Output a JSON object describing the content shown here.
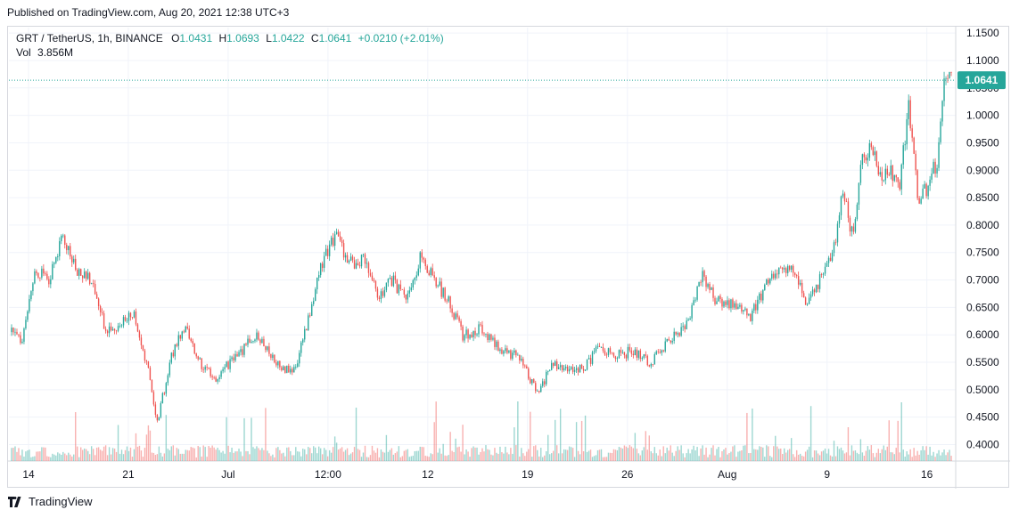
{
  "header": {
    "published": "Published on TradingView.com, Aug 20, 2021 12:38 UTC+3"
  },
  "legend": {
    "symbol": "GRT / TetherUS, 1h, BINANCE",
    "o_label": "O",
    "o": "1.0431",
    "h_label": "H",
    "h": "1.0693",
    "l_label": "L",
    "l": "1.0422",
    "c_label": "C",
    "c": "1.0641",
    "change": "+0.0210 (+2.01%)",
    "vol_label": "Vol",
    "vol": "3.856M"
  },
  "footer": {
    "brand": "TradingView"
  },
  "colors": {
    "up": "#26a69a",
    "down": "#ef5350",
    "grid": "#f0f3fa",
    "axis": "#131722",
    "last_price_bg": "#26a69a"
  },
  "chart_data": {
    "type": "candlestick",
    "symbol": "GRT / TetherUS",
    "interval": "1h",
    "exchange": "BINANCE",
    "y_ticks": [
      "1.1500",
      "1.1000",
      "1.0500",
      "1.0000",
      "0.9500",
      "0.9000",
      "0.8500",
      "0.8000",
      "0.7500",
      "0.7000",
      "0.6500",
      "0.6000",
      "0.5500",
      "0.5000",
      "0.4500",
      "0.4000"
    ],
    "ylim": [
      0.37,
      1.16
    ],
    "last_price": "1.0641",
    "x_ticks": [
      "14",
      "21",
      "Jul",
      "12:00",
      "12",
      "19",
      "26",
      "Aug",
      "9",
      "16"
    ],
    "grid": true,
    "price_path": [
      {
        "x": 0.0,
        "y": 0.605
      },
      {
        "x": 0.012,
        "y": 0.59
      },
      {
        "x": 0.025,
        "y": 0.72
      },
      {
        "x": 0.04,
        "y": 0.7
      },
      {
        "x": 0.055,
        "y": 0.78
      },
      {
        "x": 0.07,
        "y": 0.71
      },
      {
        "x": 0.085,
        "y": 0.7
      },
      {
        "x": 0.1,
        "y": 0.61
      },
      {
        "x": 0.115,
        "y": 0.62
      },
      {
        "x": 0.13,
        "y": 0.64
      },
      {
        "x": 0.145,
        "y": 0.54
      },
      {
        "x": 0.155,
        "y": 0.44
      },
      {
        "x": 0.17,
        "y": 0.56
      },
      {
        "x": 0.185,
        "y": 0.62
      },
      {
        "x": 0.2,
        "y": 0.55
      },
      {
        "x": 0.215,
        "y": 0.52
      },
      {
        "x": 0.24,
        "y": 0.56
      },
      {
        "x": 0.26,
        "y": 0.6
      },
      {
        "x": 0.28,
        "y": 0.55
      },
      {
        "x": 0.3,
        "y": 0.53
      },
      {
        "x": 0.315,
        "y": 0.62
      },
      {
        "x": 0.33,
        "y": 0.73
      },
      {
        "x": 0.345,
        "y": 0.78
      },
      {
        "x": 0.36,
        "y": 0.73
      },
      {
        "x": 0.375,
        "y": 0.74
      },
      {
        "x": 0.39,
        "y": 0.67
      },
      {
        "x": 0.405,
        "y": 0.7
      },
      {
        "x": 0.42,
        "y": 0.66
      },
      {
        "x": 0.435,
        "y": 0.74
      },
      {
        "x": 0.45,
        "y": 0.7
      },
      {
        "x": 0.465,
        "y": 0.66
      },
      {
        "x": 0.48,
        "y": 0.6
      },
      {
        "x": 0.5,
        "y": 0.61
      },
      {
        "x": 0.52,
        "y": 0.57
      },
      {
        "x": 0.54,
        "y": 0.56
      },
      {
        "x": 0.56,
        "y": 0.49
      },
      {
        "x": 0.575,
        "y": 0.55
      },
      {
        "x": 0.59,
        "y": 0.54
      },
      {
        "x": 0.61,
        "y": 0.54
      },
      {
        "x": 0.625,
        "y": 0.58
      },
      {
        "x": 0.64,
        "y": 0.56
      },
      {
        "x": 0.66,
        "y": 0.57
      },
      {
        "x": 0.68,
        "y": 0.55
      },
      {
        "x": 0.7,
        "y": 0.59
      },
      {
        "x": 0.72,
        "y": 0.62
      },
      {
        "x": 0.735,
        "y": 0.71
      },
      {
        "x": 0.75,
        "y": 0.66
      },
      {
        "x": 0.77,
        "y": 0.66
      },
      {
        "x": 0.785,
        "y": 0.63
      },
      {
        "x": 0.8,
        "y": 0.68
      },
      {
        "x": 0.815,
        "y": 0.72
      },
      {
        "x": 0.83,
        "y": 0.72
      },
      {
        "x": 0.845,
        "y": 0.66
      },
      {
        "x": 0.86,
        "y": 0.7
      },
      {
        "x": 0.875,
        "y": 0.76
      },
      {
        "x": 0.885,
        "y": 0.86
      },
      {
        "x": 0.895,
        "y": 0.78
      },
      {
        "x": 0.905,
        "y": 0.92
      },
      {
        "x": 0.915,
        "y": 0.95
      },
      {
        "x": 0.925,
        "y": 0.88
      },
      {
        "x": 0.935,
        "y": 0.9
      },
      {
        "x": 0.945,
        "y": 0.87
      },
      {
        "x": 0.955,
        "y": 1.02
      },
      {
        "x": 0.965,
        "y": 0.84
      },
      {
        "x": 0.975,
        "y": 0.87
      },
      {
        "x": 0.985,
        "y": 0.92
      },
      {
        "x": 0.992,
        "y": 1.06
      },
      {
        "x": 1.0,
        "y": 1.064
      }
    ]
  }
}
